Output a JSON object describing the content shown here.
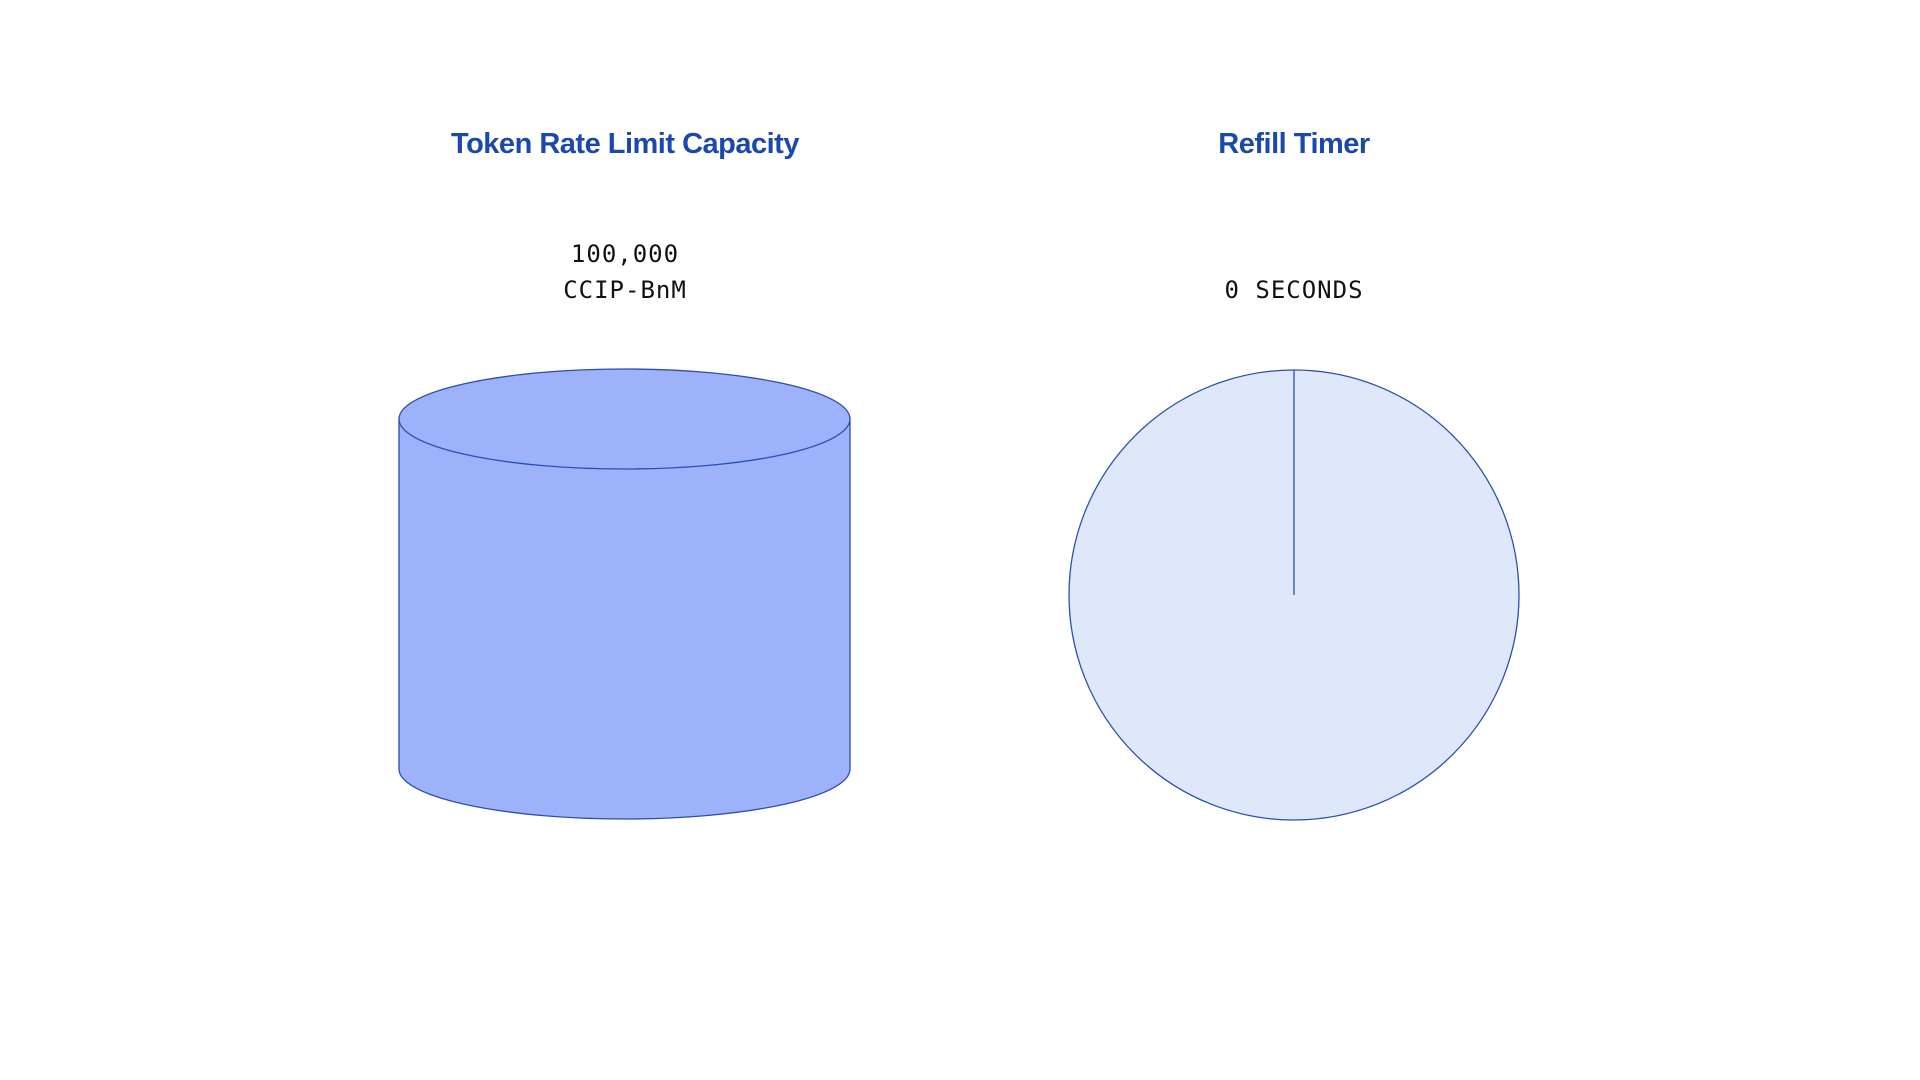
{
  "capacity": {
    "title": "Token Rate Limit Capacity",
    "amount": "100,000",
    "token": "CCIP-BnM",
    "fill_color": "#9db2fb",
    "stroke_color": "#2b4fae"
  },
  "refill": {
    "title": "Refill Timer",
    "time": "0 SECONDS",
    "elapsed_fraction": 0,
    "fill_color": "#dfe7fa",
    "stroke_color": "#2b4fae"
  }
}
